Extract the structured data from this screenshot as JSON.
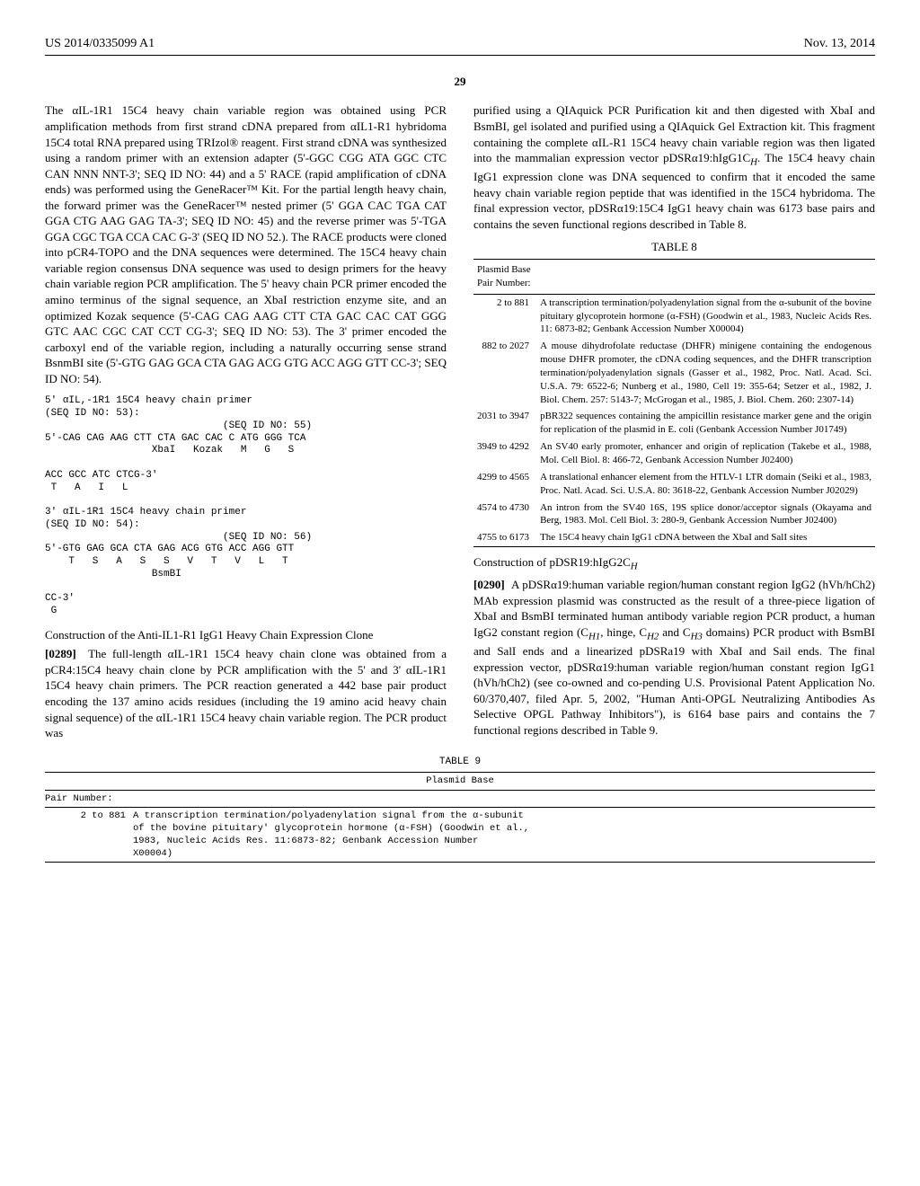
{
  "header": {
    "pub_number": "US 2014/0335099 A1",
    "pub_date": "Nov. 13, 2014",
    "page": "29"
  },
  "left": {
    "para1": "The αIL-1R1 15C4 heavy chain variable region was obtained using PCR amplification methods from first strand cDNA prepared from αIL1-R1 hybridoma 15C4 total RNA prepared using TRIzol® reagent. First strand cDNA was synthesized using a random primer with an extension adapter (5'-GGC CGG ATA GGC CTC CAN NNN NNT-3'; SEQ ID NO: 44) and a 5' RACE (rapid amplification of cDNA ends) was performed using the GeneRacer™ Kit. For the partial length heavy chain, the forward primer was the GeneRacer™ nested primer (5' GGA CAC TGA CAT GGA CTG AAG GAG TA-3'; SEQ ID NO: 45) and the reverse primer was 5'-TGA GGA CGC TGA CCA CAC G-3' (SEQ ID NO 52.). The RACE products were cloned into pCR4-TOPO and the DNA sequences were determined. The 15C4 heavy chain variable region consensus DNA sequence was used to design primers for the heavy chain variable region PCR amplification. The 5' heavy chain PCR primer encoded the amino terminus of the signal sequence, an XbaI restriction enzyme site, and an optimized Kozak sequence (5'-CAG CAG AAG CTT CTA GAC CAC CAT GGG GTC AAC CGC CAT CCT CG-3'; SEQ ID NO: 53). The 3' primer encoded the carboxyl end of the variable region, including a naturally occurring sense strand BsnmBI site (5'-GTG GAG GCA CTA GAG ACG GTG ACC AGG GTT CC-3'; SEQ ID NO: 54).",
    "seq_block": "5' αIL,-1R1 15C4 heavy chain primer\n(SEQ ID NO: 53):\n                              (SEQ ID NO: 55)\n5'-CAG CAG AAG CTT CTA GAC CAC C ATG GGG TCA\n                  XbaI   Kozak   M   G   S\n\nACC GCC ATC CTCG-3'\n T   A   I   L\n\n3' αIL-1R1 15C4 heavy chain primer\n(SEQ ID NO: 54):\n                              (SEQ ID NO: 56)\n5'-GTG GAG GCA CTA GAG ACG GTG ACC AGG GTT\n    T   S   A   S   S   V   T   V   L   T\n                  BsmBI\n\nCC-3'\n G",
    "section2_title": "Construction of the Anti-IL1-R1 IgG1 Heavy Chain Expression Clone",
    "para2_num": "[0289]",
    "para2": "The full-length αIL-1R1 15C4 heavy chain clone was obtained from a pCR4:15C4 heavy chain clone by PCR amplification with the 5' and 3' αIL-1R1 15C4 heavy chain primers. The PCR reaction generated a 442 base pair product encoding the 137 amino acids residues (including the 19 amino acid heavy chain signal sequence) of the αIL-1R1 15C4 heavy chain variable region. The PCR product was"
  },
  "right": {
    "para1": "purified using a QIAquick PCR Purification kit and then digested with XbaI and BsmBI, gel isolated and purified using a QIAquick Gel Extraction kit. This fragment containing the complete αIL-R1 15C4 heavy chain variable region was then ligated into the mammalian expression vector pDSRα19:hIgG1C",
    "para1_suffix": ". The 15C4 heavy chain IgG1 expression clone was DNA sequenced to confirm that it encoded the same heavy chain variable region peptide that was identified in the 15C4 hybridoma. The final expression vector, pDSRα19:15C4 IgG1 heavy chain was 6173 base pairs and contains the seven functional regions described in Table 8.",
    "table8_label": "TABLE 8",
    "table8_header_left": "Plasmid Base\nPair Number:",
    "table8": [
      {
        "range": "2 to 881",
        "desc": "A transcription termination/polyadenylation signal from the α-subunit of the bovine pituitary glycoprotein hormone (α-FSH) (Goodwin et al., 1983, Nucleic Acids Res. 11: 6873-82; Genbank Accession Number X00004)"
      },
      {
        "range": "882 to 2027",
        "desc": "A mouse dihydrofolate reductase (DHFR) minigene containing the endogenous mouse DHFR promoter, the cDNA coding sequences, and the DHFR transcription termination/polyadenylation signals (Gasser et al., 1982, Proc. Natl. Acad. Sci. U.S.A. 79: 6522-6; Nunberg et al., 1980, Cell 19: 355-64; Setzer et al., 1982, J. Biol. Chem. 257: 5143-7; McGrogan et al., 1985, J. Biol. Chem. 260: 2307-14)"
      },
      {
        "range": "2031 to 3947",
        "desc": "pBR322 sequences containing the ampicillin resistance marker gene and the origin for replication of the plasmid in E. coli (Genbank Accession Number J01749)"
      },
      {
        "range": "3949 to 4292",
        "desc": "An SV40 early promoter, enhancer and origin of replication (Takebe et al., 1988, Mol. Cell Biol. 8: 466-72, Genbank Accession Number J02400)"
      },
      {
        "range": "4299 to 4565",
        "desc": "A translational enhancer element from the HTLV-1 LTR domain (Seiki et al., 1983, Proc. Natl. Acad. Sci. U.S.A. 80: 3618-22, Genbank Accession Number J02029)"
      },
      {
        "range": "4574 to 4730",
        "desc": "An intron from the SV40 16S, 19S splice donor/acceptor signals (Okayama and Berg, 1983. Mol. Cell Biol. 3: 280-9, Genbank Accession Number J02400)"
      },
      {
        "range": "4755 to 6173",
        "desc": "The 15C4 heavy chain IgG1 cDNA between the XbaI and SalI sites"
      }
    ],
    "section_title": "Construction of pDSR19:hIgG2C",
    "para2_num": "[0290]",
    "para2": "A pDSRα19:human variable region/human constant region IgG2 (hVh/hCh2) MAb expression plasmid was constructed as the result of a three-piece ligation of XbaI and BsmBI terminated human antibody variable region PCR product, a human IgG2 constant region (C",
    "para2_mid": ", hinge, C",
    "para2_mid2": " and C",
    "para2_mid3": " domains) PCR product with BsmBI and SalI ends and a linearized pDSRa19 with XbaI and Sail ends. The final expression vector, pDSRα19:human variable region/human constant region IgG1 (hVh/hCh2) (see co-owned and co-pending U.S. Provisional Patent Application No. 60/370,407, filed Apr. 5, 2002, \"Human Anti-OPGL Neutralizing Antibodies As Selective OPGL Pathway Inhibitors\"), is 6164 base pairs and contains the 7 functional regions described in Table 9."
  },
  "table9": {
    "label": "TABLE 9",
    "header": "Plasmid Base",
    "sub": "Pair Number:",
    "row_range": "2 to 881",
    "row_desc": "A transcription termination/polyadenylation signal from the α-subunit\nof the bovine pituitary' glycoprotein hormone (α-FSH) (Goodwin et al.,\n1983, Nucleic Acids Res. 11:6873-82; Genbank Accession Number\nX00004)"
  }
}
